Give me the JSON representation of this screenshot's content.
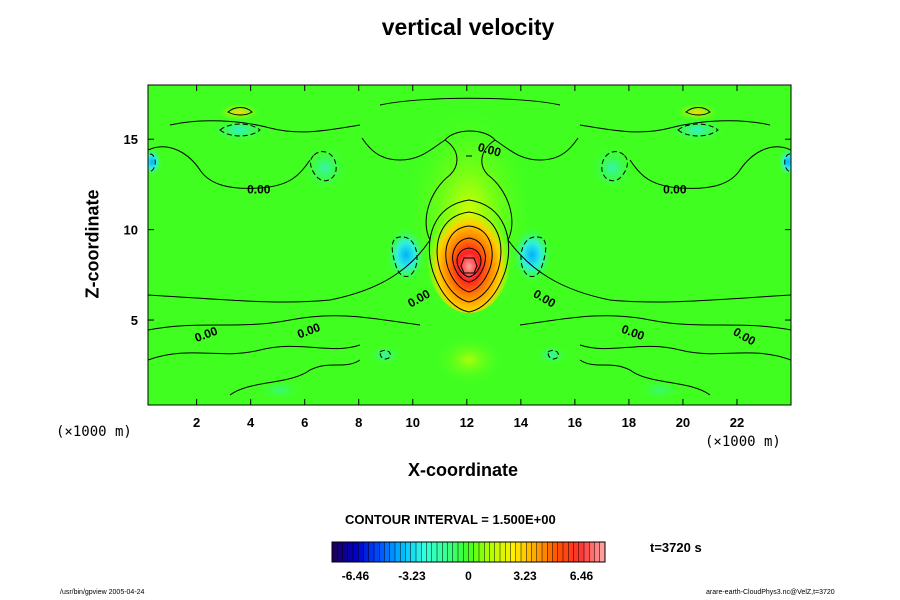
{
  "chart_data": {
    "type": "heatmap",
    "title": "vertical velocity",
    "xlabel": "X-coordinate",
    "ylabel": "Z-coordinate",
    "x_unit": "(×1000 m)",
    "x_ticks": [
      2,
      4,
      6,
      8,
      10,
      12,
      14,
      16,
      18,
      20,
      22
    ],
    "y_ticks": [
      5,
      10,
      15
    ],
    "xlim": [
      0.2,
      24
    ],
    "ylim": [
      0.3,
      18
    ],
    "contour_interval_label": "CONTOUR INTERVAL = 1.500E+00",
    "time_label": "t=3720 s",
    "contour_labels": [
      {
        "text": "0.00",
        "x": 12.8,
        "z": 14.2,
        "angle": 15
      },
      {
        "text": "0.00",
        "x": 4.3,
        "z": 12.0,
        "angle": 0
      },
      {
        "text": "0.00",
        "x": 19.7,
        "z": 12.0,
        "angle": 0
      },
      {
        "text": "0.00",
        "x": 10.3,
        "z": 6.0,
        "angle": -30
      },
      {
        "text": "0.00",
        "x": 14.8,
        "z": 6.0,
        "angle": 30
      },
      {
        "text": "0.00",
        "x": 2.4,
        "z": 4.0,
        "angle": -20
      },
      {
        "text": "0.00",
        "x": 6.2,
        "z": 4.2,
        "angle": -20
      },
      {
        "text": "0.00",
        "x": 18.1,
        "z": 4.1,
        "angle": 20
      },
      {
        "text": "0.00",
        "x": 22.2,
        "z": 3.9,
        "angle": 30
      }
    ],
    "field_features": [
      {
        "kind": "updraft_core",
        "x": 12.0,
        "z": 7.8,
        "peak": 6.5
      },
      {
        "kind": "downdraft",
        "x": 9.3,
        "z": 8.1,
        "min": -1.6
      },
      {
        "kind": "downdraft",
        "x": 14.6,
        "z": 8.1,
        "min": -1.6
      },
      {
        "kind": "downdraft",
        "x": 3.6,
        "z": 15.4,
        "min": -1.2
      },
      {
        "kind": "downdraft",
        "x": 20.4,
        "z": 15.4,
        "min": -1.2
      },
      {
        "kind": "downdraft",
        "x": 6.8,
        "z": 13.3,
        "min": -0.9
      },
      {
        "kind": "downdraft",
        "x": 17.2,
        "z": 13.3,
        "min": -0.9
      }
    ],
    "colorbar": {
      "ticks": [
        "-6.46",
        "-3.23",
        "0",
        "3.23",
        "6.46"
      ],
      "range": [
        -7.8,
        7.8
      ],
      "colors": [
        "#1a0060",
        "#0000c8",
        "#0050ff",
        "#00b8ff",
        "#30ffe0",
        "#38ff90",
        "#40ff20",
        "#b4ff00",
        "#fff000",
        "#ffa800",
        "#ff5000",
        "#ff3030",
        "#ff9d9d"
      ]
    }
  },
  "footer": {
    "left": "/usr/bin/gpview 2005-04-24",
    "right": "arare-earth-CloudPhys3.nc@VelZ,t=3720"
  }
}
